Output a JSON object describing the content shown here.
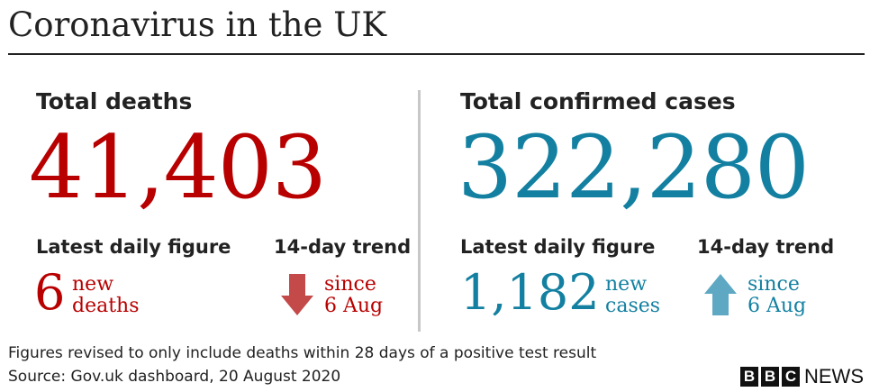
{
  "title": "Coronavirus in the UK",
  "colors": {
    "deaths": "#b80000",
    "cases": "#1380a1",
    "down_arrow": "#c44a4a",
    "up_arrow": "#5fa8c3",
    "divider": "#c7c7c7"
  },
  "deaths": {
    "heading": "Total deaths",
    "total": "41,403",
    "daily_heading": "Latest daily figure",
    "daily_value": "6",
    "daily_label_1": "new",
    "daily_label_2": "deaths",
    "trend_heading": "14-day trend",
    "trend_icon": "arrow-down-icon",
    "trend_label_1": "since",
    "trend_label_2": "6 Aug"
  },
  "cases": {
    "heading": "Total confirmed cases",
    "total": "322,280",
    "daily_heading": "Latest daily figure",
    "daily_value": "1,182",
    "daily_label_1": "new",
    "daily_label_2": "cases",
    "trend_heading": "14-day trend",
    "trend_icon": "arrow-up-icon",
    "trend_label_1": "since",
    "trend_label_2": "6 Aug"
  },
  "footer": {
    "note": "Figures revised to only include deaths within 28 days of a positive test result",
    "source": "Source: Gov.uk dashboard, 20 August  2020",
    "logo_letters": [
      "B",
      "B",
      "C"
    ],
    "logo_word": "NEWS"
  }
}
